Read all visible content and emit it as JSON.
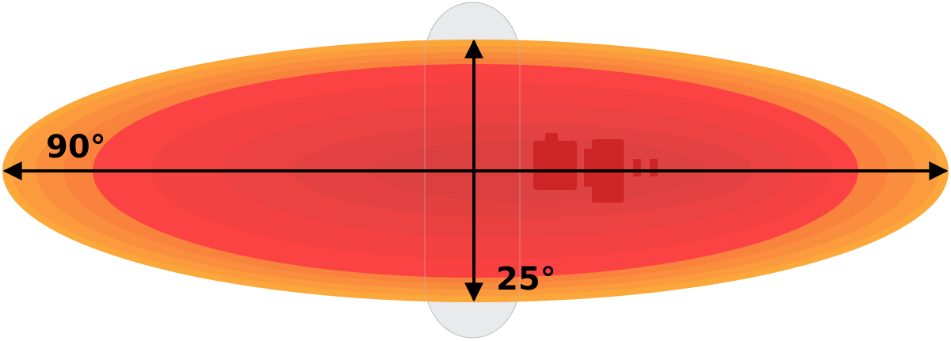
{
  "diagram": {
    "horizontal_beamwidth_label": "90°",
    "vertical_beamwidth_label": "25°",
    "colors": {
      "outer": "#fca12c",
      "mid_orange": "#fa8a30",
      "inner_orange": "#f9792f",
      "red": "#fc3535",
      "core": "#dd3333",
      "antenna": "#e9eaec",
      "arrows": "#000000"
    }
  }
}
